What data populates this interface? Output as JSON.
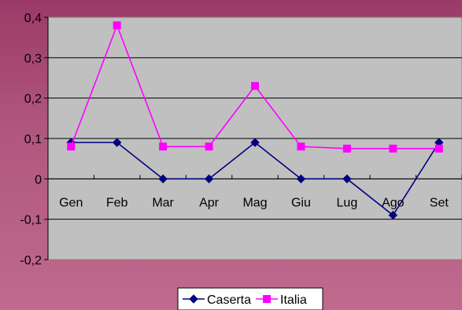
{
  "chart_data": {
    "type": "line",
    "categories": [
      "Gen",
      "Feb",
      "Mar",
      "Apr",
      "Mag",
      "Giu",
      "Lug",
      "Ago",
      "Set"
    ],
    "series": [
      {
        "name": "Caserta",
        "values": [
          0.09,
          0.09,
          0.0,
          0.0,
          0.09,
          0.0,
          0.0,
          -0.09,
          0.09
        ],
        "color": "#000080",
        "marker": "diamond"
      },
      {
        "name": "Italia",
        "values": [
          0.08,
          0.38,
          0.08,
          0.08,
          0.23,
          0.08,
          0.075,
          0.075,
          0.075
        ],
        "color": "#ff00ff",
        "marker": "square"
      }
    ],
    "y_ticks": [
      "0,4",
      "0,3",
      "0,2",
      "0,1",
      "0",
      "-0,1",
      "-0,2"
    ],
    "ylim": [
      -0.2,
      0.4
    ],
    "grid": true,
    "legend": "bottom",
    "plot_background": "#c0c0c0",
    "title": "",
    "xlabel": "",
    "ylabel": ""
  }
}
